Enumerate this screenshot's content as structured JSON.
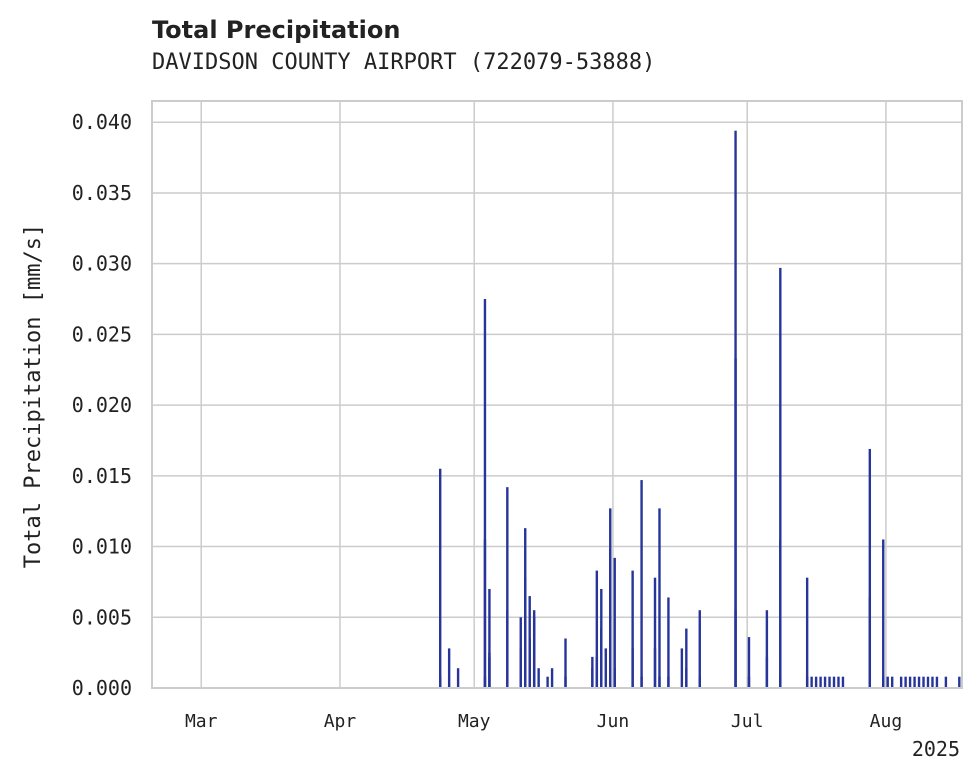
{
  "chart_data": {
    "type": "bar",
    "title": "Total Precipitation",
    "subtitle": "DAVIDSON COUNTY AIRPORT (722079-53888)",
    "xlabel": "",
    "ylabel": "Total Precipitation [mm/s]",
    "x_year_label": "2025",
    "x_tick_labels": [
      "Mar",
      "Apr",
      "May",
      "Jun",
      "Jul",
      "Aug"
    ],
    "x_tick_dates": [
      "2025-03-01",
      "2025-04-01",
      "2025-05-01",
      "2025-06-01",
      "2025-07-01",
      "2025-08-01"
    ],
    "xlim": [
      "2025-02-18",
      "2025-08-18"
    ],
    "y_tick_labels": [
      "0.000",
      "0.005",
      "0.010",
      "0.015",
      "0.020",
      "0.025",
      "0.030",
      "0.035",
      "0.040"
    ],
    "ylim": [
      0,
      0.0415
    ],
    "grid": true,
    "bar_color": "#27359a",
    "series": [
      {
        "name": "Total Precipitation",
        "points": [
          [
            "2025-04-23",
            0.0155
          ],
          [
            "2025-04-23",
            0.0008
          ],
          [
            "2025-04-25",
            0.0028
          ],
          [
            "2025-04-27",
            0.0014
          ],
          [
            "2025-05-03",
            0.0008
          ],
          [
            "2025-05-03",
            0.0105
          ],
          [
            "2025-05-03",
            0.0275
          ],
          [
            "2025-05-04",
            0.007
          ],
          [
            "2025-05-04",
            0.0025
          ],
          [
            "2025-05-04",
            0.0022
          ],
          [
            "2025-05-08",
            0.0142
          ],
          [
            "2025-05-08",
            0.0055
          ],
          [
            "2025-05-11",
            0.005
          ],
          [
            "2025-05-11",
            0.0028
          ],
          [
            "2025-05-12",
            0.0078
          ],
          [
            "2025-05-12",
            0.0113
          ],
          [
            "2025-05-13",
            0.0065
          ],
          [
            "2025-05-13",
            0.0035
          ],
          [
            "2025-05-14",
            0.0055
          ],
          [
            "2025-05-14",
            0.005
          ],
          [
            "2025-05-15",
            0.0014
          ],
          [
            "2025-05-17",
            0.0008
          ],
          [
            "2025-05-18",
            0.0014
          ],
          [
            "2025-05-21",
            0.0035
          ],
          [
            "2025-05-21",
            0.0008
          ],
          [
            "2025-05-27",
            0.0014
          ],
          [
            "2025-05-27",
            0.0022
          ],
          [
            "2025-05-28",
            0.0022
          ],
          [
            "2025-05-28",
            0.0083
          ],
          [
            "2025-05-29",
            0.007
          ],
          [
            "2025-05-29",
            0.0042
          ],
          [
            "2025-05-30",
            0.0028
          ],
          [
            "2025-05-31",
            0.0127
          ],
          [
            "2025-05-31",
            0.0098
          ],
          [
            "2025-06-01",
            0.0092
          ],
          [
            "2025-06-01",
            0.0014
          ],
          [
            "2025-06-05",
            0.0083
          ],
          [
            "2025-06-05",
            0.0028
          ],
          [
            "2025-06-07",
            0.0147
          ],
          [
            "2025-06-07",
            0.0008
          ],
          [
            "2025-06-10",
            0.0078
          ],
          [
            "2025-06-10",
            0.0028
          ],
          [
            "2025-06-11",
            0.0127
          ],
          [
            "2025-06-11",
            0.0008
          ],
          [
            "2025-06-13",
            0.0064
          ],
          [
            "2025-06-13",
            0.0008
          ],
          [
            "2025-06-16",
            0.0028
          ],
          [
            "2025-06-17",
            0.0042
          ],
          [
            "2025-06-17",
            0.0014
          ],
          [
            "2025-06-20",
            0.0055
          ],
          [
            "2025-06-20",
            0.0008
          ],
          [
            "2025-06-28",
            0.0394
          ],
          [
            "2025-06-28",
            0.0233
          ],
          [
            "2025-06-28",
            0.0055
          ],
          [
            "2025-07-01",
            0.0036
          ],
          [
            "2025-07-01",
            0.0008
          ],
          [
            "2025-07-05",
            0.0055
          ],
          [
            "2025-07-05",
            0.0022
          ],
          [
            "2025-07-08",
            0.0297
          ],
          [
            "2025-07-08",
            0.0105
          ],
          [
            "2025-07-08",
            0.0008
          ],
          [
            "2025-07-14",
            0.0078
          ],
          [
            "2025-07-14",
            0.0008
          ],
          [
            "2025-07-15",
            0.0008
          ],
          [
            "2025-07-16",
            0.0008
          ],
          [
            "2025-07-17",
            0.0008
          ],
          [
            "2025-07-18",
            0.0008
          ],
          [
            "2025-07-19",
            0.0008
          ],
          [
            "2025-07-20",
            0.0008
          ],
          [
            "2025-07-21",
            0.0008
          ],
          [
            "2025-07-22",
            0.0008
          ],
          [
            "2025-07-28",
            0.0169
          ],
          [
            "2025-07-28",
            0.0064
          ],
          [
            "2025-07-31",
            0.0105
          ],
          [
            "2025-07-31",
            0.0008
          ],
          [
            "2025-08-01",
            0.0008
          ],
          [
            "2025-08-02",
            0.0008
          ],
          [
            "2025-08-04",
            0.0008
          ],
          [
            "2025-08-05",
            0.0008
          ],
          [
            "2025-08-06",
            0.0008
          ],
          [
            "2025-08-07",
            0.0008
          ],
          [
            "2025-08-08",
            0.0008
          ],
          [
            "2025-08-09",
            0.0008
          ],
          [
            "2025-08-10",
            0.0008
          ],
          [
            "2025-08-11",
            0.0008
          ],
          [
            "2025-08-12",
            0.0008
          ],
          [
            "2025-08-14",
            0.0008
          ],
          [
            "2025-08-17",
            0.0008
          ]
        ]
      }
    ]
  }
}
